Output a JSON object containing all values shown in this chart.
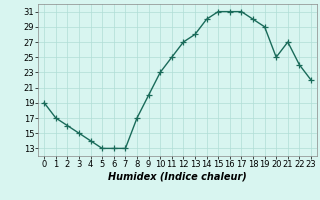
{
  "x": [
    0,
    1,
    2,
    3,
    4,
    5,
    6,
    7,
    8,
    9,
    10,
    11,
    12,
    13,
    14,
    15,
    16,
    17,
    18,
    19,
    20,
    21,
    22,
    23
  ],
  "y": [
    19,
    17,
    16,
    15,
    14,
    13,
    13,
    13,
    17,
    20,
    23,
    25,
    27,
    28,
    30,
    31,
    31,
    31,
    30,
    29,
    25,
    27,
    24,
    22
  ],
  "line_color": "#1a6b5a",
  "marker": "+",
  "marker_size": 4,
  "linewidth": 1.0,
  "bg_color": "#d8f5f0",
  "grid_color": "#b0ddd6",
  "xlabel": "Humidex (Indice chaleur)",
  "xlabel_fontsize": 7,
  "tick_fontsize": 6,
  "xlim": [
    -0.5,
    23.5
  ],
  "ylim": [
    12,
    32
  ],
  "yticks": [
    13,
    15,
    17,
    19,
    21,
    23,
    25,
    27,
    29,
    31
  ],
  "xticks": [
    0,
    1,
    2,
    3,
    4,
    5,
    6,
    7,
    8,
    9,
    10,
    11,
    12,
    13,
    14,
    15,
    16,
    17,
    18,
    19,
    20,
    21,
    22,
    23
  ]
}
